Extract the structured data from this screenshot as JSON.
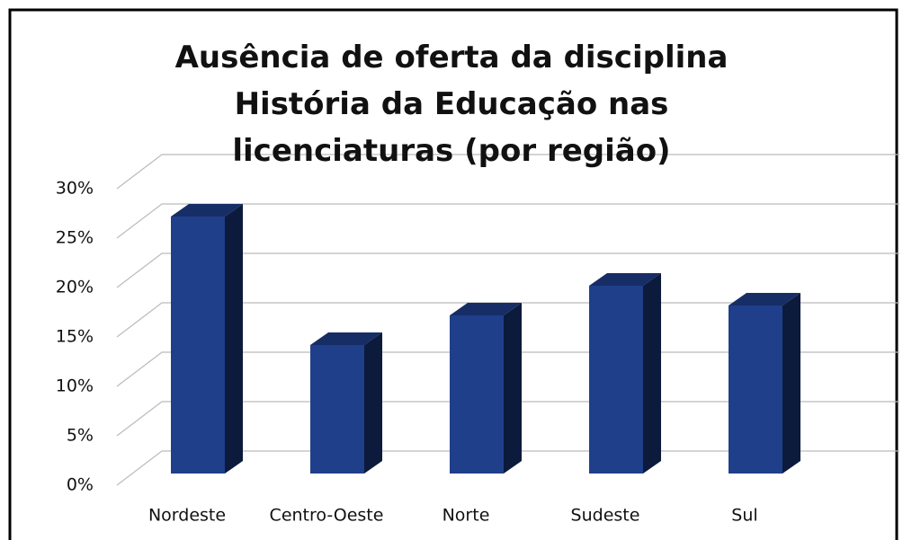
{
  "chart_data": {
    "type": "bar3d",
    "title": "Ausência de oferta da disciplina História da Educação nas licenciaturas (por região)",
    "categories": [
      "Nordeste",
      "Centro-Oeste",
      "Norte",
      "Sudeste",
      "Sul"
    ],
    "values": [
      26,
      13,
      16,
      19,
      17
    ],
    "color": "#1f3f8a",
    "ylim": [
      0,
      30
    ],
    "yticks": [
      {
        "value": 0,
        "label": "0%"
      },
      {
        "value": 5,
        "label": "5%"
      },
      {
        "value": 10,
        "label": "10%"
      },
      {
        "value": 15,
        "label": "15%"
      },
      {
        "value": 20,
        "label": "20%"
      },
      {
        "value": 25,
        "label": "25%"
      },
      {
        "value": 30,
        "label": "30%"
      }
    ],
    "grid": true
  }
}
